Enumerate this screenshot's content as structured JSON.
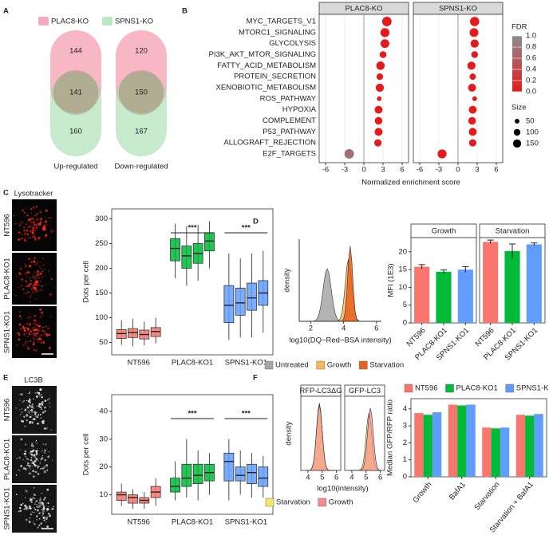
{
  "micrographs": [
    {
      "title": "Lysotracker",
      "labels": [
        "NT596",
        "PLAC8-KO1",
        "SPNS1-KO1"
      ],
      "color": "#ff2a1a"
    },
    {
      "title": "LC3B",
      "labels": [
        "NT596",
        "PLAC8-KO1",
        "SPNS1-KO1"
      ],
      "color": "#e6e6e6"
    }
  ],
  "chart_data": [
    {
      "type": "venn",
      "panel": "A",
      "series": [
        {
          "name": "PLAC8-KO",
          "color": "#f0708c"
        },
        {
          "name": "SPNS1-KO",
          "color": "#8fd69b"
        }
      ],
      "groups": [
        {
          "label": "Up-regulated",
          "values": [
            144,
            141,
            160
          ]
        },
        {
          "label": "Down-regulated",
          "values": [
            120,
            150,
            167
          ]
        }
      ]
    },
    {
      "type": "dotplot",
      "panel": "B",
      "categories": [
        "MYC_TARGETS_V1",
        "MTORC1_SIGNALING",
        "GLYCOLYSIS",
        "PI3K_AKT_MTOR_SIGNALING",
        "FATTY_ACID_METABOLISM",
        "PROTEIN_SECRETION",
        "XENOBIOTIC_METABOLISM",
        "ROS_PATHWAY",
        "HYPOXIA",
        "COMPLEMENT",
        "P53_PATHWAY",
        "ALLOGRAFT_REJECTION",
        "E2F_TARGETS"
      ],
      "series": [
        {
          "name": "PLAC8-KO",
          "values": [
            3.6,
            3.3,
            3.3,
            3.0,
            2.6,
            2.5,
            2.5,
            2.4,
            2.3,
            2.3,
            2.3,
            2.2,
            -2.3
          ],
          "fdr": [
            0,
            0,
            0,
            0,
            0,
            0,
            0,
            0.01,
            0,
            0,
            0,
            0,
            0.75
          ],
          "size": [
            200,
            180,
            170,
            105,
            158,
            96,
            150,
            49,
            140,
            130,
            140,
            120,
            200
          ]
        },
        {
          "name": "SPNS1-KO",
          "values": [
            2.6,
            2.5,
            2.6,
            2.6,
            2.1,
            2.3,
            2.2,
            2.6,
            2.3,
            2.2,
            2.3,
            2.3,
            -2.5
          ],
          "fdr": [
            0,
            0,
            0,
            0,
            0,
            0,
            0,
            0,
            0,
            0,
            0,
            0,
            0
          ],
          "size": [
            190,
            170,
            150,
            100,
            150,
            90,
            140,
            49,
            140,
            130,
            140,
            120,
            180
          ]
        }
      ],
      "xlim": [
        -7,
        7
      ],
      "xticks": [
        -6,
        -3,
        0,
        3,
        6
      ],
      "xlabel": "Normalized enrichment score",
      "color_legend": {
        "title": "FDR",
        "colors": [
          "#e41a1c",
          "#8c8c8c"
        ],
        "ticks": [
          {
            "value": 1,
            "label": "1.0"
          },
          0.8,
          0.6,
          0.4,
          0.2,
          {
            "value": 0,
            "label": "0.0"
          }
        ]
      },
      "size_legend": {
        "title": "Size",
        "values": [
          50,
          100,
          150
        ]
      }
    },
    {
      "type": "box",
      "panel": "C",
      "categories": [
        "NT596",
        "PLAC8-KO1",
        "SPNS1-KO1"
      ],
      "colors": [
        "#f8766d",
        "#00ba38",
        "#619cff"
      ],
      "boxes": [
        [
          [
            45,
            58,
            68,
            76,
            95
          ],
          [
            42,
            60,
            70,
            78,
            98
          ],
          [
            44,
            57,
            66,
            75,
            92
          ],
          [
            48,
            62,
            72,
            80,
            100
          ]
        ],
        [
          [
            180,
            215,
            240,
            260,
            290
          ],
          [
            165,
            200,
            225,
            245,
            285
          ],
          [
            175,
            210,
            230,
            250,
            288
          ],
          [
            200,
            235,
            255,
            272,
            295
          ]
        ],
        [
          [
            55,
            90,
            125,
            165,
            230
          ],
          [
            60,
            105,
            130,
            160,
            220
          ],
          [
            60,
            115,
            140,
            170,
            230
          ],
          [
            70,
            125,
            150,
            175,
            235
          ]
        ]
      ],
      "significance": [
        null,
        "***",
        "***"
      ],
      "ylim": [
        25,
        320
      ],
      "yticks": [
        50,
        100,
        150,
        200,
        250,
        300
      ],
      "ylabel": "Dots per cell"
    },
    {
      "type": "density",
      "panel": "D",
      "x": [
        2,
        2.1,
        2.2,
        2.3,
        2.4,
        2.5,
        2.6,
        2.7,
        2.8,
        2.9,
        3,
        3.1,
        3.2,
        3.3,
        3.4,
        3.5,
        3.6,
        3.7,
        3.8,
        3.9,
        4,
        4.1,
        4.2,
        4.3,
        4.4,
        4.5,
        4.6,
        4.7,
        4.8,
        4.9,
        5
      ],
      "series": [
        {
          "name": "Untreated",
          "color": "#a6a6a6",
          "values": [
            0,
            0,
            0.01,
            0.03,
            0.09,
            0.22,
            0.44,
            0.78,
            1.16,
            1.48,
            1.6,
            1.48,
            1.16,
            0.78,
            0.44,
            0.22,
            0.09,
            0.03,
            0.01,
            0,
            0,
            0,
            0,
            0,
            0,
            0,
            0,
            0,
            0,
            0,
            0
          ]
        },
        {
          "name": "Growth",
          "color": "#f7b955",
          "values": [
            0,
            0,
            0,
            0,
            0,
            0,
            0,
            0,
            0,
            0,
            0,
            0,
            0,
            0,
            0,
            0,
            0,
            0.02,
            0.08,
            0.26,
            0.62,
            1.15,
            1.68,
            1.9,
            1.68,
            1.15,
            0.62,
            0.26,
            0.08,
            0.02,
            0
          ]
        },
        {
          "name": "Starvation",
          "color": "#e8601c",
          "values": [
            0,
            0,
            0,
            0,
            0,
            0,
            0,
            0,
            0,
            0,
            0,
            0,
            0,
            0,
            0,
            0,
            0,
            0,
            0,
            0.01,
            0.07,
            0.31,
            0.94,
            1.84,
            2.3,
            1.84,
            0.94,
            0.31,
            0.07,
            0.01,
            0
          ]
        }
      ],
      "xlim": [
        1.3,
        6.3
      ],
      "xticks": [
        2,
        4,
        6
      ],
      "ylim": [
        0,
        2.5
      ],
      "xlabel": "log10(DQ−Red−BSA intensity)",
      "ylabel": "density"
    },
    {
      "type": "facet_bar",
      "categories": [
        "NT596",
        "PLAC8-KO1",
        "SPNS1-KO1"
      ],
      "colors": [
        "#f8766d",
        "#00ba38",
        "#619cff"
      ],
      "series": [
        {
          "name": "Growth",
          "values": [
            15.8,
            14.4,
            15.0
          ],
          "errors": [
            0.6,
            0.5,
            0.8
          ]
        },
        {
          "name": "Starvation",
          "values": [
            22.8,
            20.2,
            22.1
          ],
          "errors": [
            0.5,
            2.0,
            0.4
          ]
        }
      ],
      "ylim": [
        0,
        24
      ],
      "yticks": [
        0,
        5,
        10,
        15,
        20
      ],
      "ylabel": "MFI (1E3)"
    },
    {
      "type": "box",
      "panel": "E",
      "categories": [
        "NT596",
        "PLAC8-KO1",
        "SPNS1-KO1"
      ],
      "colors": [
        "#f8766d",
        "#00ba38",
        "#619cff"
      ],
      "boxes": [
        [
          [
            6,
            8,
            10,
            11,
            14
          ],
          [
            5,
            7,
            9,
            10,
            12
          ],
          [
            5,
            7,
            8,
            9,
            11
          ],
          [
            6,
            9,
            11,
            13,
            16
          ]
        ],
        [
          [
            8,
            11,
            13,
            16,
            22
          ],
          [
            9,
            13,
            16,
            21,
            30
          ],
          [
            8,
            14,
            17,
            21,
            26
          ],
          [
            10,
            15,
            18,
            21,
            25
          ]
        ],
        [
          [
            8,
            15,
            22,
            25,
            30
          ],
          [
            10,
            15,
            17,
            20,
            26
          ],
          [
            9,
            14,
            18,
            21,
            25
          ],
          [
            9,
            13,
            16,
            20,
            24
          ]
        ]
      ],
      "significance": [
        null,
        "***",
        "***"
      ],
      "ylim": [
        3,
        46
      ],
      "yticks": [
        10,
        20,
        30,
        40
      ],
      "ylabel": "Dots per cell"
    },
    {
      "type": "facet_density",
      "panel": "F",
      "facets": [
        "RFP-LC3ΔG",
        "GFP-LC3"
      ],
      "x": [
        3.8,
        3.9,
        4,
        4.1,
        4.2,
        4.3,
        4.4,
        4.5,
        4.6,
        4.7,
        4.8,
        4.9,
        5,
        5.1,
        5.2,
        5.3,
        5.4,
        5.5,
        5.6,
        5.7,
        5.8,
        5.9,
        6
      ],
      "series": [
        {
          "name": "Starvation",
          "color": "#f5e66a",
          "values": [
            [
              0,
              0,
              0,
              0,
              0.02,
              0.09,
              0.27,
              0.65,
              1.21,
              1.76,
              2,
              1.76,
              1.21,
              0.65,
              0.27,
              0.09,
              0.02,
              0,
              0,
              0,
              0,
              0,
              0
            ],
            [
              0,
              0,
              0,
              0,
              0,
              0,
              0,
              0,
              0.02,
              0.08,
              0.23,
              0.55,
              1.03,
              1.5,
              1.7,
              1.5,
              1.03,
              0.55,
              0.23,
              0.08,
              0.02,
              0,
              0
            ]
          ]
        },
        {
          "name": "Growth",
          "color": "#f28b8b",
          "values": [
            [
              0,
              0,
              0,
              0,
              0.02,
              0.09,
              0.26,
              0.63,
              1.17,
              1.71,
              1.94,
              1.71,
              1.17,
              0.63,
              0.26,
              0.09,
              0.02,
              0,
              0,
              0,
              0,
              0,
              0
            ],
            [
              0,
              0,
              0,
              0,
              0,
              0,
              0,
              0,
              0,
              0.02,
              0.08,
              0.25,
              0.6,
              1.12,
              1.63,
              1.85,
              1.63,
              1.12,
              0.6,
              0.25,
              0.08,
              0.02,
              0
            ]
          ]
        }
      ],
      "xlim": [
        3.5,
        6.3
      ],
      "xticks": [
        4,
        5,
        6
      ],
      "ylim": [
        0,
        2.2
      ],
      "xlabel": "log10(intensity)",
      "ylabel": "density"
    },
    {
      "type": "grouped_bar",
      "categories": [
        "Growth",
        "BafA1",
        "Starvation",
        "Starvation + BafA1"
      ],
      "series": [
        {
          "name": "NT596",
          "color": "#f8766d",
          "values": [
            3.75,
            4.25,
            2.9,
            3.65
          ]
        },
        {
          "name": "PLAC8-KO1",
          "color": "#00ba38",
          "values": [
            3.65,
            4.2,
            2.85,
            3.6
          ]
        },
        {
          "name": "SPNS1-KO1",
          "color": "#619cff",
          "values": [
            3.8,
            4.25,
            2.9,
            3.7
          ]
        }
      ],
      "ylim": [
        0,
        4.6
      ],
      "yticks": [
        0,
        1,
        2,
        3,
        4
      ],
      "ylabel": "Median GFP/RFP ratio"
    }
  ]
}
